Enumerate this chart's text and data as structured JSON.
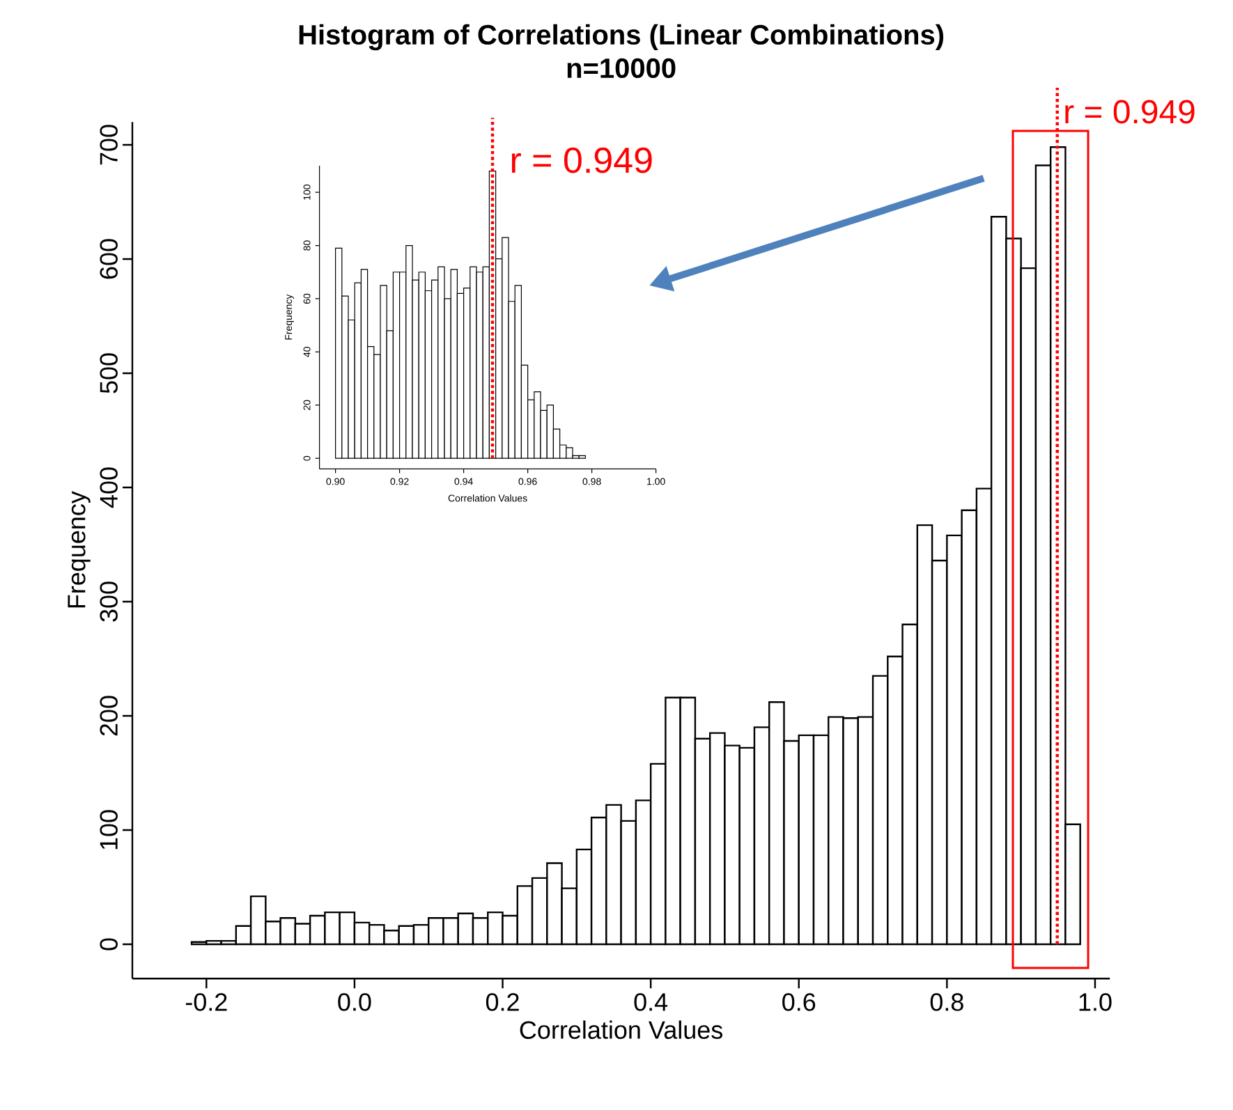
{
  "chart_data": [
    {
      "type": "histogram",
      "title": "Histogram of Correlations (Linear Combinations)",
      "subtitle": "n=10000",
      "xlabel": "Correlation Values",
      "ylabel": "Frequency",
      "color": "#ffffff",
      "bins": [
        -0.22,
        -0.2,
        -0.18,
        -0.16,
        -0.14,
        -0.12,
        -0.1,
        -0.08,
        -0.06,
        -0.04,
        -0.02,
        0,
        0.02,
        0.04,
        0.06,
        0.08,
        0.1,
        0.12,
        0.14,
        0.16,
        0.18,
        0.2,
        0.22,
        0.24,
        0.26,
        0.28,
        0.3,
        0.32,
        0.34,
        0.36,
        0.38,
        0.4,
        0.42,
        0.44,
        0.46,
        0.48,
        0.5,
        0.52,
        0.54,
        0.56,
        0.58,
        0.6,
        0.62,
        0.64,
        0.66,
        0.68,
        0.7,
        0.72,
        0.74,
        0.76,
        0.78,
        0.8,
        0.82,
        0.84,
        0.86,
        0.88,
        0.9,
        0.92,
        0.94,
        0.96,
        0.98
      ],
      "values": [
        2,
        3,
        3,
        16,
        42,
        20,
        23,
        18,
        25,
        28,
        28,
        19,
        17,
        12,
        16,
        17,
        23,
        23,
        27,
        23,
        28,
        25,
        51,
        58,
        71,
        49,
        83,
        111,
        122,
        108,
        126,
        158,
        216,
        216,
        180,
        185,
        174,
        172,
        190,
        212,
        178,
        183,
        183,
        199,
        198,
        199,
        235,
        252,
        280,
        367,
        336,
        358,
        380,
        399,
        637,
        618,
        592,
        682,
        698,
        105
      ],
      "xlim": [
        -0.3,
        1.02
      ],
      "ylim": [
        -30,
        720
      ],
      "xticks": [
        -0.2,
        {
          "value": 0,
          "label": "0.0"
        },
        0.2,
        0.4,
        0.6,
        0.8,
        {
          "value": 1,
          "label": "1.0"
        }
      ],
      "yticks": [
        0,
        100,
        200,
        300,
        400,
        500,
        600,
        700
      ],
      "ref_lines": [
        {
          "axis": "x",
          "value": 0.949,
          "label": "r = 0.949",
          "color": "#ff0000",
          "line_style": "dotted"
        }
      ]
    },
    {
      "type": "histogram",
      "xlabel": "Correlation Values",
      "ylabel": "Frequency",
      "color": "#ffffff",
      "bins": [
        0.9,
        0.902,
        0.904,
        0.906,
        0.908,
        0.91,
        0.912,
        0.914,
        0.916,
        0.918,
        0.92,
        0.922,
        0.924,
        0.926,
        0.928,
        0.93,
        0.932,
        0.934,
        0.936,
        0.938,
        0.94,
        0.942,
        0.944,
        0.946,
        0.948,
        0.95,
        0.952,
        0.954,
        0.956,
        0.958,
        0.96,
        0.962,
        0.964,
        0.966,
        0.968,
        0.97,
        0.972,
        0.974,
        0.976,
        0.978
      ],
      "values": [
        79,
        61,
        52,
        66,
        71,
        42,
        39,
        65,
        48,
        70,
        70,
        80,
        67,
        70,
        63,
        67,
        72,
        60,
        71,
        62,
        64,
        72,
        70,
        72,
        108,
        75,
        83,
        59,
        65,
        35,
        22,
        25,
        18,
        20,
        11,
        5,
        4,
        1,
        1
      ],
      "xlim": [
        0.895,
        1.0
      ],
      "ylim": [
        -4,
        110
      ],
      "xticks": [
        {
          "value": 0.9,
          "label": "0.90"
        },
        {
          "value": 0.92,
          "label": "0.92"
        },
        {
          "value": 0.94,
          "label": "0.94"
        },
        {
          "value": 0.96,
          "label": "0.96"
        },
        {
          "value": 0.98,
          "label": "0.98"
        },
        {
          "value": 1,
          "label": "1.00"
        }
      ],
      "yticks": [
        0,
        20,
        40,
        60,
        80,
        100
      ],
      "ref_lines": [
        {
          "axis": "x",
          "value": 0.949,
          "label": "r = 0.949",
          "color": "#ff0000",
          "line_style": "dotted"
        }
      ]
    }
  ]
}
